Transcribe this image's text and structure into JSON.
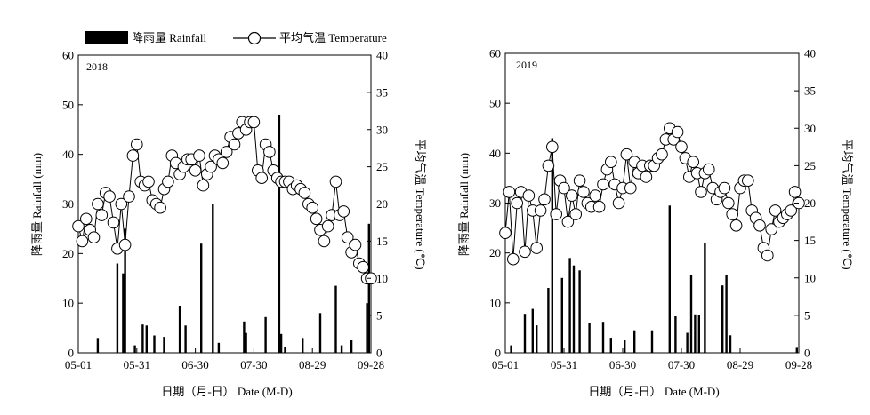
{
  "legend": {
    "rain_label": "降雨量 Rainfall",
    "temp_label": "平均气温 Temperature"
  },
  "shared_axes": {
    "xlabel": "日期（月-日） Date (M-D)",
    "ylabel_left": "降雨量 Rainfall (mm)",
    "ylabel_right": "平均气温 Temperature (℃)"
  },
  "colors": {
    "rain": "#000000",
    "temp_line": "#000000",
    "temp_marker_fill": "#ffffff"
  },
  "chart_data": [
    {
      "type": "bar+line",
      "title": "2018",
      "x_ticks": [
        "05-01",
        "05-31",
        "06-30",
        "07-30",
        "08-29",
        "09-28"
      ],
      "xlim_days": [
        0,
        150
      ],
      "ylim_left": [
        0,
        60
      ],
      "ylim_right": [
        0,
        40
      ],
      "y_ticks_left": [
        0,
        10,
        20,
        30,
        40,
        50,
        60
      ],
      "y_ticks_right": [
        0,
        5,
        10,
        15,
        20,
        25,
        30,
        35,
        40
      ],
      "rainfall_series": {
        "name": "降雨量 Rainfall",
        "day": [
          10,
          20,
          23,
          24,
          29,
          33,
          35,
          39,
          44,
          52,
          55,
          63,
          69,
          72,
          85,
          86,
          96,
          103,
          104,
          106,
          115,
          124,
          132,
          135,
          140,
          148,
          149
        ],
        "values": [
          3,
          18,
          16,
          25,
          1.5,
          5.7,
          5.5,
          3.5,
          3.2,
          9.5,
          5.5,
          22,
          30,
          2,
          6.3,
          4,
          7.2,
          48,
          3.8,
          1.2,
          3,
          8,
          13.5,
          1.5,
          2.5,
          10,
          26
        ]
      },
      "temperature_series": {
        "name": "平均气温 Temperature",
        "day": [
          0,
          2,
          4,
          6,
          8,
          10,
          12,
          14,
          16,
          18,
          20,
          22,
          24,
          26,
          28,
          30,
          32,
          34,
          36,
          38,
          40,
          42,
          44,
          46,
          48,
          50,
          52,
          54,
          56,
          58,
          60,
          62,
          64,
          66,
          68,
          70,
          72,
          74,
          76,
          78,
          80,
          82,
          84,
          86,
          88,
          90,
          92,
          94,
          96,
          98,
          100,
          102,
          104,
          106,
          108,
          110,
          112,
          114,
          116,
          118,
          120,
          122,
          124,
          126,
          128,
          130,
          132,
          134,
          136,
          138,
          140,
          142,
          144,
          146,
          148,
          150
        ],
        "values": [
          17,
          15,
          18,
          16.5,
          15.5,
          20,
          18.5,
          21.5,
          21,
          17.5,
          14,
          20,
          14.5,
          21,
          26.5,
          28,
          23,
          22.5,
          23,
          20.5,
          20,
          19.5,
          22,
          23,
          26.5,
          25.5,
          24,
          25,
          26,
          26,
          24.5,
          26.5,
          22.5,
          24,
          25,
          26.5,
          26,
          25.5,
          27,
          29,
          28,
          29.5,
          31,
          30,
          31,
          31,
          24.5,
          23.5,
          28,
          27,
          24.5,
          23.5,
          23,
          23,
          23,
          22,
          22.5,
          22,
          21.5,
          20,
          19.5,
          18,
          16.5,
          15,
          17,
          18.5,
          23,
          18.5,
          19,
          15.5,
          13.5,
          14.5,
          12,
          11.5,
          10,
          10
        ]
      }
    },
    {
      "type": "bar+line",
      "title": "2019",
      "x_ticks": [
        "05-01",
        "05-31",
        "06-30",
        "07-30",
        "08-29",
        "09-28"
      ],
      "xlim_days": [
        0,
        150
      ],
      "ylim_left": [
        0,
        60
      ],
      "ylim_right": [
        0,
        40
      ],
      "y_ticks_left": [
        0,
        10,
        20,
        30,
        40,
        50,
        60
      ],
      "y_ticks_right": [
        0,
        5,
        10,
        15,
        20,
        25,
        30,
        35,
        40
      ],
      "rainfall_series": {
        "name": "降雨量 Rainfall",
        "day": [
          3,
          10,
          14,
          16,
          22,
          24,
          29,
          33,
          35,
          38,
          43,
          50,
          54,
          61,
          66,
          75,
          84,
          87,
          93,
          95,
          97,
          99,
          102,
          111,
          113,
          115,
          149
        ],
        "values": [
          1.5,
          7.8,
          8.8,
          5.5,
          13,
          43,
          15,
          19,
          17.5,
          16.5,
          6,
          6.2,
          3,
          2.5,
          4.5,
          4.5,
          29.5,
          7.3,
          4,
          15.5,
          7.7,
          7.5,
          22,
          13.5,
          15.5,
          3.5,
          1
        ]
      },
      "temperature_series": {
        "name": "平均气温 Temperature",
        "day": [
          0,
          2,
          4,
          6,
          8,
          10,
          12,
          14,
          16,
          18,
          20,
          22,
          24,
          26,
          28,
          30,
          32,
          34,
          36,
          38,
          40,
          42,
          44,
          46,
          48,
          50,
          52,
          54,
          56,
          58,
          60,
          62,
          64,
          66,
          68,
          70,
          72,
          74,
          76,
          78,
          80,
          82,
          84,
          86,
          88,
          90,
          92,
          94,
          96,
          98,
          100,
          102,
          104,
          106,
          108,
          110,
          112,
          114,
          116,
          118,
          120,
          122,
          124,
          126,
          128,
          130,
          132,
          134,
          136,
          138,
          140,
          142,
          144,
          146,
          148,
          150
        ],
        "values": [
          16,
          21.5,
          12.5,
          20,
          21.5,
          13.5,
          21,
          19,
          14,
          19,
          20.5,
          25,
          27.5,
          18.5,
          23,
          22,
          17.5,
          21,
          18.5,
          23,
          21.5,
          20,
          19.5,
          21,
          19.5,
          22.5,
          24.5,
          25.5,
          22.5,
          20,
          22,
          26.5,
          22,
          25.5,
          24,
          25,
          23.5,
          25,
          25,
          26,
          26.5,
          28.5,
          30,
          28.5,
          29.5,
          27.5,
          26,
          23.5,
          25.5,
          24,
          21.5,
          24,
          24.5,
          22,
          20.5,
          21.5,
          22,
          20,
          18.5,
          17,
          22,
          23,
          23,
          19,
          18,
          17,
          14,
          13,
          16.5,
          19,
          17.5,
          18,
          18.5,
          19,
          21.5,
          20
        ]
      }
    }
  ]
}
